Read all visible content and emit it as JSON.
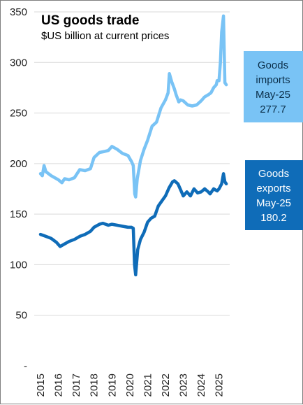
{
  "chart_data": {
    "type": "line",
    "title": "US goods trade",
    "subtitle": "$US billion at current prices",
    "ylim": [
      0,
      350
    ],
    "y_ticks": [
      {
        "value": 0,
        "label": "-"
      },
      {
        "value": 50,
        "label": "50"
      },
      {
        "value": 100,
        "label": "100"
      },
      {
        "value": 150,
        "label": "150"
      },
      {
        "value": 200,
        "label": "200"
      },
      {
        "value": 250,
        "label": "250"
      },
      {
        "value": 300,
        "label": "300"
      },
      {
        "value": 350,
        "label": "350"
      }
    ],
    "x_ticks": [
      "2015",
      "2016",
      "2017",
      "2018",
      "2019",
      "2020",
      "2021",
      "2022",
      "2023",
      "2024",
      "2025"
    ],
    "grid": "horizontal",
    "colors": {
      "imports": "#79c3f5",
      "exports": "#0f6cb8",
      "grid": "#d9d9d9"
    },
    "series": [
      {
        "key": "imports",
        "x": [
          2015.0,
          2015.1,
          2015.2,
          2015.3,
          2015.6,
          2016.0,
          2016.2,
          2016.35,
          2016.6,
          2016.9,
          2017.2,
          2017.5,
          2017.8,
          2018.0,
          2018.3,
          2018.6,
          2018.8,
          2019.0,
          2019.3,
          2019.6,
          2019.9,
          2020.1,
          2020.2,
          2020.28,
          2020.33,
          2020.42,
          2020.6,
          2020.8,
          2021.0,
          2021.25,
          2021.5,
          2021.75,
          2022.0,
          2022.15,
          2022.22,
          2022.35,
          2022.5,
          2022.6,
          2022.75,
          2022.85,
          2023.0,
          2023.25,
          2023.5,
          2023.75,
          2024.0,
          2024.2,
          2024.4,
          2024.55,
          2024.7,
          2024.85,
          2024.9,
          2025.0,
          2025.08,
          2025.15,
          2025.25,
          2025.33,
          2025.41
        ],
        "values": [
          190,
          188,
          198,
          192,
          188,
          184,
          181,
          185,
          184,
          186,
          194,
          193,
          195,
          206,
          211,
          212,
          213,
          217,
          214,
          210,
          208,
          202,
          198,
          170,
          167,
          185,
          203,
          214,
          223,
          237,
          241,
          255,
          263,
          270,
          289,
          281,
          274,
          268,
          261,
          263,
          262,
          258,
          257,
          258,
          262,
          266,
          268,
          270,
          275,
          278,
          282,
          282,
          300,
          330,
          346,
          280,
          278
        ]
      },
      {
        "key": "exports",
        "x": [
          2015.0,
          2015.3,
          2015.6,
          2015.9,
          2016.1,
          2016.3,
          2016.6,
          2016.9,
          2017.2,
          2017.5,
          2017.8,
          2018.0,
          2018.3,
          2018.5,
          2018.8,
          2019.0,
          2019.3,
          2019.6,
          2019.9,
          2020.1,
          2020.2,
          2020.27,
          2020.33,
          2020.45,
          2020.6,
          2020.8,
          2021.0,
          2021.2,
          2021.4,
          2021.6,
          2021.8,
          2022.0,
          2022.2,
          2022.4,
          2022.5,
          2022.7,
          2022.9,
          2023.0,
          2023.2,
          2023.4,
          2023.6,
          2023.8,
          2024.0,
          2024.2,
          2024.4,
          2024.5,
          2024.7,
          2024.9,
          2025.0,
          2025.15,
          2025.25,
          2025.33,
          2025.41
        ],
        "values": [
          130,
          128,
          126,
          122,
          118,
          120,
          123,
          125,
          128,
          130,
          133,
          137,
          140,
          141,
          139,
          140,
          139,
          138,
          137,
          137,
          136,
          100,
          90,
          115,
          125,
          132,
          142,
          146,
          148,
          158,
          163,
          168,
          176,
          182,
          183,
          180,
          172,
          168,
          172,
          168,
          175,
          171,
          172,
          175,
          172,
          170,
          175,
          173,
          175,
          180,
          190,
          182,
          180
        ]
      }
    ],
    "annotations": {
      "imports": {
        "lines": [
          "Goods",
          "imports",
          "May-25",
          "277.7"
        ]
      },
      "exports": {
        "lines": [
          "Goods",
          "exports",
          "May-25",
          "180.2"
        ]
      }
    }
  }
}
